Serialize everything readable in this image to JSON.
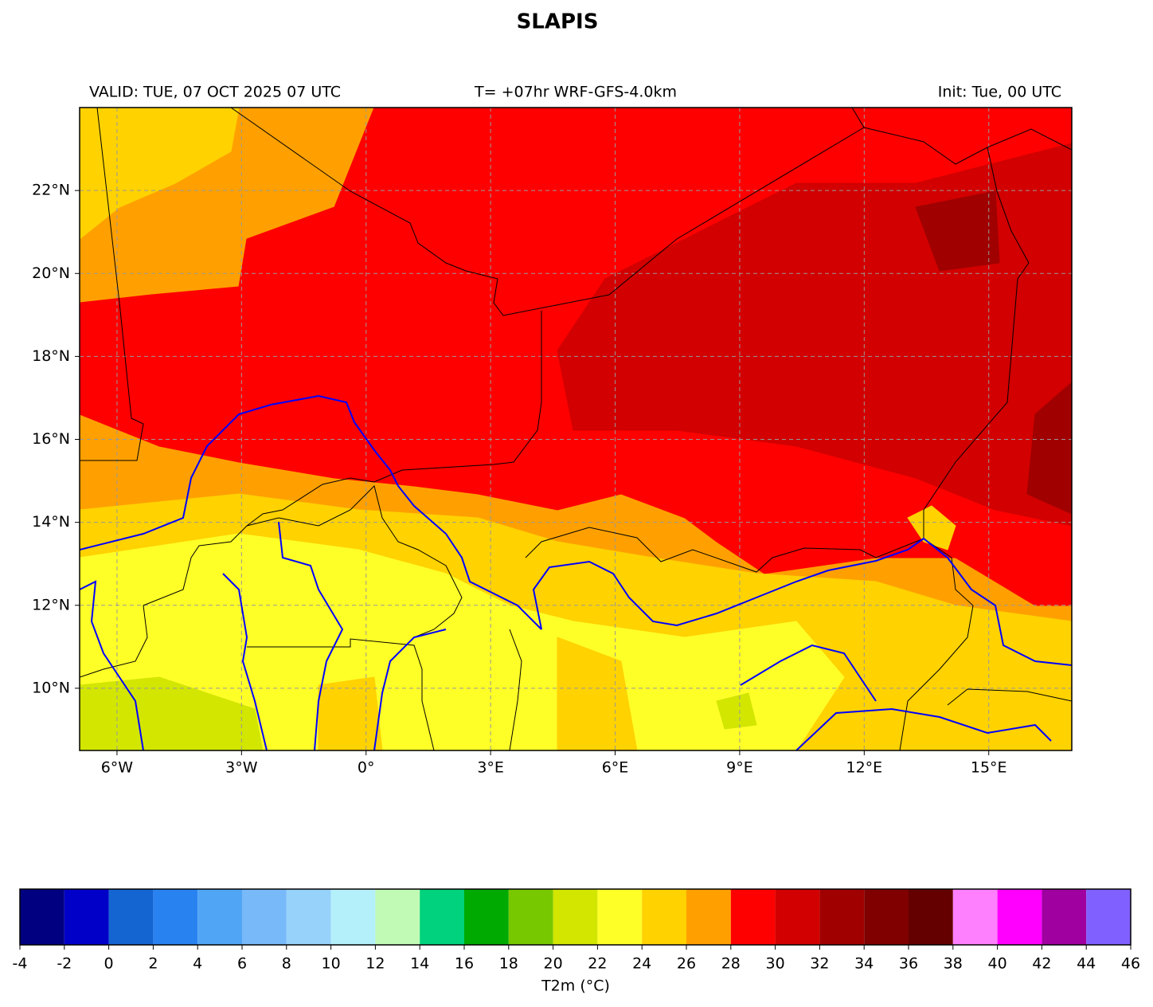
{
  "title": "SLAPIS",
  "header": {
    "valid": "VALID: TUE, 07 OCT 2025 07 UTC",
    "run": "T= +07hr WRF-GFS-4.0km",
    "init": "Init: Tue, 00 UTC"
  },
  "map": {
    "xlim": [
      -6.9,
      17.0
    ],
    "ylim": [
      8.5,
      24.0
    ],
    "grid": true,
    "xticks": [
      {
        "value": -6,
        "label": "6°W"
      },
      {
        "value": -3,
        "label": "3°W"
      },
      {
        "value": 0,
        "label": "0°"
      },
      {
        "value": 3,
        "label": "3°E"
      },
      {
        "value": 6,
        "label": "6°E"
      },
      {
        "value": 9,
        "label": "9°E"
      },
      {
        "value": 12,
        "label": "12°E"
      },
      {
        "value": 15,
        "label": "15°E"
      }
    ],
    "yticks": [
      {
        "value": 10,
        "label": "10°N"
      },
      {
        "value": 12,
        "label": "12°N"
      },
      {
        "value": 14,
        "label": "14°N"
      },
      {
        "value": 16,
        "label": "16°N"
      },
      {
        "value": 18,
        "label": "18°N"
      },
      {
        "value": 20,
        "label": "20°N"
      },
      {
        "value": 22,
        "label": "22°N"
      }
    ]
  },
  "colorbar": {
    "label": "T2m (°C)",
    "bounds": [
      -4,
      -2,
      0,
      2,
      4,
      6,
      8,
      10,
      12,
      14,
      16,
      18,
      20,
      22,
      24,
      26,
      28,
      30,
      32,
      34,
      36,
      38,
      40,
      42,
      44,
      46
    ],
    "colors": [
      "#000080",
      "#0000c8",
      "#1464d2",
      "#2882f0",
      "#50a5f5",
      "#78b9fa",
      "#96d2fa",
      "#b4f0fa",
      "#c0fab4",
      "#00d27d",
      "#00aa00",
      "#78c800",
      "#d2e600",
      "#ffff28",
      "#ffd200",
      "#ffa000",
      "#ff0000",
      "#d20000",
      "#a00000",
      "#800000",
      "#640000",
      "#ff80ff",
      "#ff00ff",
      "#a000a0",
      "#8060ff"
    ]
  }
}
